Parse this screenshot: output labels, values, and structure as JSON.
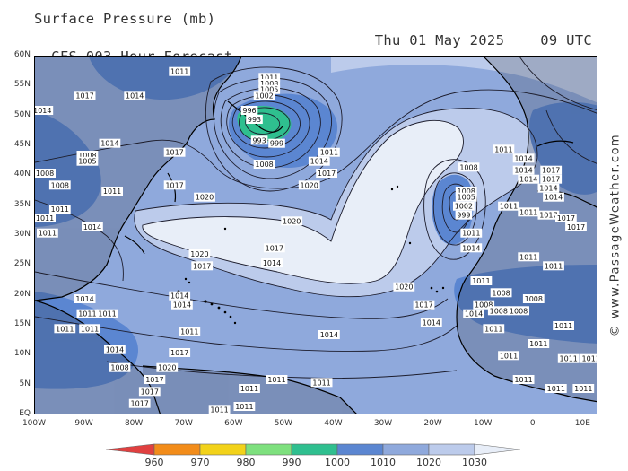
{
  "header": {
    "title": "Surface Pressure (mb)",
    "subtitle": "GFS 003 Hour Forecast",
    "date": "Thu 01 May 2025",
    "time": "09 UTC"
  },
  "watermark": "© www.PassageWeather.com",
  "map": {
    "lat_labels": [
      "60N",
      "55N",
      "50N",
      "45N",
      "40N",
      "35N",
      "30N",
      "25N",
      "20N",
      "15N",
      "10N",
      "5N",
      "EQ"
    ],
    "lon_labels": [
      "100W",
      "90W",
      "80W",
      "70W",
      "60W",
      "50W",
      "40W",
      "30W",
      "20W",
      "10W",
      "0",
      "10E"
    ],
    "ocean_base_color": "#8fa9dc",
    "land_color": "#1a1a1a",
    "features": [
      {
        "type": "low",
        "name": "North Atlantic low near Newfoundland",
        "center_pressure": "993"
      },
      {
        "type": "low",
        "name": "Low west of Iberia",
        "center_pressure": "1002"
      },
      {
        "type": "high",
        "name": "Azores high ridge",
        "value": "1020"
      }
    ],
    "isobar_labels": [
      {
        "text": "1011",
        "lon": -71,
        "lat": 57.5
      },
      {
        "text": "1014",
        "lon": -80,
        "lat": 53.5
      },
      {
        "text": "1017",
        "lon": -90,
        "lat": 53.5
      },
      {
        "text": "1014",
        "lon": -98.5,
        "lat": 51
      },
      {
        "text": "1011",
        "lon": -53,
        "lat": 56.5
      },
      {
        "text": "1008",
        "lon": -53,
        "lat": 55.5
      },
      {
        "text": "1005",
        "lon": -53,
        "lat": 54.5
      },
      {
        "text": "1002",
        "lon": -54,
        "lat": 53.5
      },
      {
        "text": "996",
        "lon": -57,
        "lat": 51
      },
      {
        "text": "993",
        "lon": -56,
        "lat": 49.5
      },
      {
        "text": "993",
        "lon": -55,
        "lat": 46
      },
      {
        "text": "999",
        "lon": -51.5,
        "lat": 45.5
      },
      {
        "text": "1008",
        "lon": -54,
        "lat": 42
      },
      {
        "text": "1014",
        "lon": -43,
        "lat": 42.5
      },
      {
        "text": "1011",
        "lon": -41,
        "lat": 44
      },
      {
        "text": "1017",
        "lon": -41.5,
        "lat": 40.5
      },
      {
        "text": "1020",
        "lon": -45,
        "lat": 38.5
      },
      {
        "text": "1017",
        "lon": -72,
        "lat": 44
      },
      {
        "text": "1014",
        "lon": -85,
        "lat": 45.5
      },
      {
        "text": "1008",
        "lon": -89.5,
        "lat": 43.5
      },
      {
        "text": "1005",
        "lon": -89.5,
        "lat": 42.5
      },
      {
        "text": "1008",
        "lon": -98,
        "lat": 40.5
      },
      {
        "text": "1008",
        "lon": -95,
        "lat": 38.5
      },
      {
        "text": "1011",
        "lon": -84.5,
        "lat": 37.5
      },
      {
        "text": "1017",
        "lon": -72,
        "lat": 38.5
      },
      {
        "text": "1020",
        "lon": -66,
        "lat": 36.5
      },
      {
        "text": "1011",
        "lon": -95,
        "lat": 34.5
      },
      {
        "text": "1011",
        "lon": -98,
        "lat": 33
      },
      {
        "text": "1011",
        "lon": -97.5,
        "lat": 30.5
      },
      {
        "text": "1014",
        "lon": -88.5,
        "lat": 31.5
      },
      {
        "text": "1020",
        "lon": -48.5,
        "lat": 32.5
      },
      {
        "text": "1017",
        "lon": -52,
        "lat": 28
      },
      {
        "text": "1020",
        "lon": -67,
        "lat": 27
      },
      {
        "text": "1017",
        "lon": -66.5,
        "lat": 25
      },
      {
        "text": "1014",
        "lon": -52.5,
        "lat": 25.5
      },
      {
        "text": "1020",
        "lon": -26,
        "lat": 21.5
      },
      {
        "text": "1017",
        "lon": -22,
        "lat": 18.5
      },
      {
        "text": "1014",
        "lon": -12,
        "lat": 17
      },
      {
        "text": "1014",
        "lon": -20.5,
        "lat": 15.5
      },
      {
        "text": "1014",
        "lon": -41,
        "lat": 13.5
      },
      {
        "text": "1014",
        "lon": -71,
        "lat": 20
      },
      {
        "text": "1014",
        "lon": -70.5,
        "lat": 18.5
      },
      {
        "text": "1011",
        "lon": -69,
        "lat": 14
      },
      {
        "text": "1008",
        "lon": -13,
        "lat": 41.5
      },
      {
        "text": "1008",
        "lon": -13.5,
        "lat": 37.5
      },
      {
        "text": "1005",
        "lon": -13.5,
        "lat": 36.5
      },
      {
        "text": "1002",
        "lon": -14,
        "lat": 35
      },
      {
        "text": "999",
        "lon": -14,
        "lat": 33.5
      },
      {
        "text": "1011",
        "lon": -12.5,
        "lat": 30.5
      },
      {
        "text": "1014",
        "lon": -12.5,
        "lat": 28
      },
      {
        "text": "1011",
        "lon": -6,
        "lat": 44.5
      },
      {
        "text": "1014",
        "lon": -2,
        "lat": 43
      },
      {
        "text": "1014",
        "lon": -2,
        "lat": 41
      },
      {
        "text": "1014",
        "lon": -1,
        "lat": 39.5
      },
      {
        "text": "1011",
        "lon": -5,
        "lat": 35
      },
      {
        "text": "1011",
        "lon": -1,
        "lat": 34
      },
      {
        "text": "1017",
        "lon": 3,
        "lat": 33.5
      },
      {
        "text": "1017",
        "lon": 6.5,
        "lat": 33
      },
      {
        "text": "1017",
        "lon": 8.5,
        "lat": 31.5
      },
      {
        "text": "1017",
        "lon": 3.5,
        "lat": 41
      },
      {
        "text": "1017",
        "lon": 3.5,
        "lat": 39.5
      },
      {
        "text": "1014",
        "lon": 3,
        "lat": 38
      },
      {
        "text": "1014",
        "lon": 4,
        "lat": 36.5
      },
      {
        "text": "1011",
        "lon": -1,
        "lat": 26.5
      },
      {
        "text": "1011",
        "lon": 4,
        "lat": 25
      },
      {
        "text": "1011",
        "lon": -10.5,
        "lat": 22.5
      },
      {
        "text": "1008",
        "lon": -6.5,
        "lat": 20.5
      },
      {
        "text": "1008",
        "lon": -10,
        "lat": 18.5
      },
      {
        "text": "1008",
        "lon": -7,
        "lat": 17.5
      },
      {
        "text": "1008",
        "lon": -3,
        "lat": 17.5
      },
      {
        "text": "1008",
        "lon": 0,
        "lat": 19.5
      },
      {
        "text": "1011",
        "lon": -8,
        "lat": 14.5
      },
      {
        "text": "1011",
        "lon": 6,
        "lat": 15
      },
      {
        "text": "1011",
        "lon": 1,
        "lat": 12
      },
      {
        "text": "1011",
        "lon": -5,
        "lat": 10
      },
      {
        "text": "1011",
        "lon": 7,
        "lat": 9.5
      },
      {
        "text": "1011",
        "lon": 11.5,
        "lat": 9.5
      },
      {
        "text": "1011",
        "lon": -2,
        "lat": 6
      },
      {
        "text": "1011",
        "lon": 4.5,
        "lat": 4.5
      },
      {
        "text": "1011",
        "lon": 10,
        "lat": 4.5
      },
      {
        "text": "1011",
        "lon": -42.5,
        "lat": 5.5
      },
      {
        "text": "1011",
        "lon": -51.5,
        "lat": 6
      },
      {
        "text": "1011",
        "lon": -57,
        "lat": 4.5
      },
      {
        "text": "1011",
        "lon": -58,
        "lat": 1.5
      },
      {
        "text": "1011",
        "lon": -63,
        "lat": 1
      },
      {
        "text": "1008",
        "lon": -83,
        "lat": 8
      },
      {
        "text": "1014",
        "lon": -84,
        "lat": 11
      },
      {
        "text": "1017",
        "lon": -71,
        "lat": 10.5
      },
      {
        "text": "1017",
        "lon": -76,
        "lat": 6
      },
      {
        "text": "1017",
        "lon": -77,
        "lat": 4
      },
      {
        "text": "1017",
        "lon": -79,
        "lat": 2
      },
      {
        "text": "1020",
        "lon": -73.5,
        "lat": 8
      },
      {
        "text": "1014",
        "lon": -90,
        "lat": 19.5
      },
      {
        "text": "1011",
        "lon": -89.5,
        "lat": 17
      },
      {
        "text": "1011",
        "lon": -85.5,
        "lat": 17
      },
      {
        "text": "1011",
        "lon": -94,
        "lat": 14.5
      },
      {
        "text": "1011",
        "lon": -89,
        "lat": 14.5
      }
    ]
  },
  "colorbar": {
    "colors": [
      "#e04040",
      "#f28c1a",
      "#f2d21a",
      "#7ee07e",
      "#2fbf8f",
      "#5b86d1",
      "#8fa9dc",
      "#bccbeb",
      "#e8eef8"
    ],
    "labels": [
      "960",
      "970",
      "980",
      "990",
      "1000",
      "1010",
      "1020",
      "1030"
    ]
  }
}
